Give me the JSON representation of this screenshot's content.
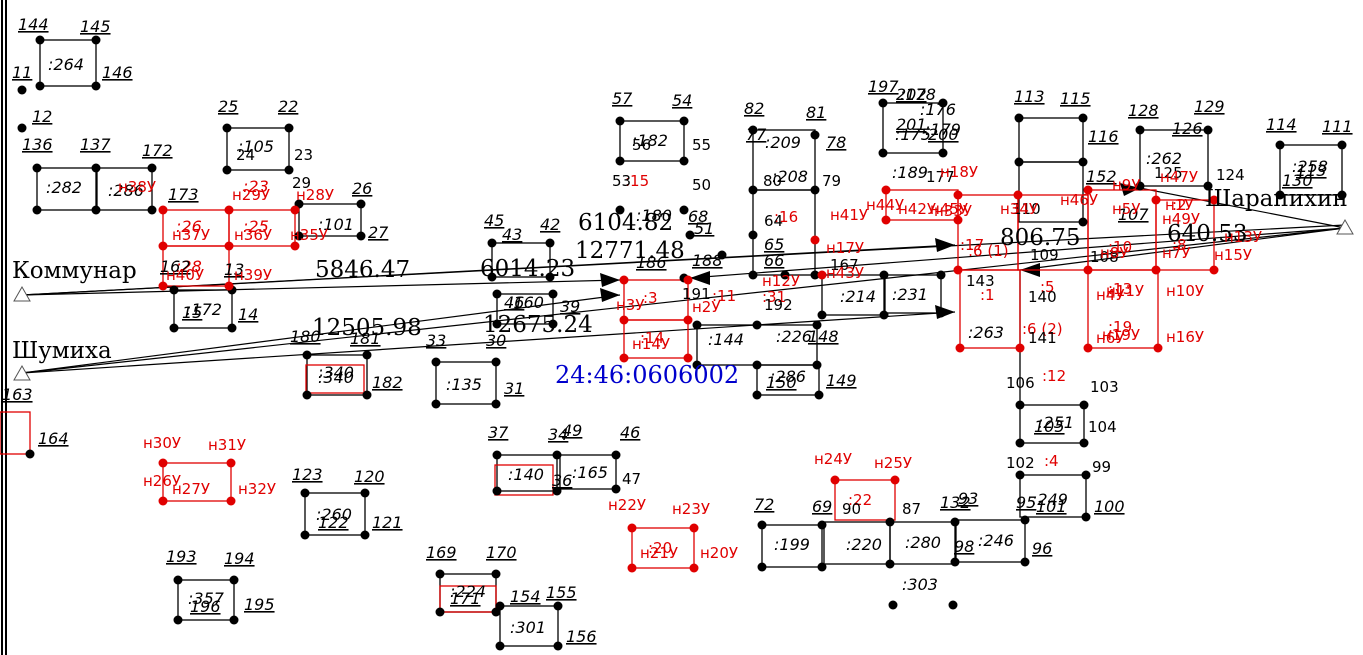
{
  "map": {
    "title": "",
    "cadastral_block": "24:46:0606002",
    "stations": [
      {
        "name": "Коммунар"
      },
      {
        "name": "Шумиха"
      },
      {
        "name": "Шарапихин"
      }
    ],
    "distances": [
      "5846.47",
      "12505.98",
      "6104.82",
      "6014.23",
      "12771.48",
      "12675.24",
      "806.75",
      "640.53"
    ],
    "parcel_labels": [
      ":264",
      ":282",
      ":286",
      ":23",
      ":25",
      ":26",
      ":28",
      ":101",
      ":105",
      ":172",
      ":15",
      ":182",
      ":180",
      ":209",
      ":208",
      ":16",
      ":189",
      ":175",
      ":176",
      ":178",
      ":179",
      ":17",
      ":1",
      ":5",
      ":6 (1)",
      ":6 (2)",
      ":263",
      ":10",
      ":13",
      ":19",
      ":12",
      ":251",
      ":4",
      ":249",
      ":262",
      ":258",
      ":340",
      ":135",
      ":160",
      ":144",
      ":286",
      ":226",
      ":231",
      ":214",
      ":340",
      ":165",
      ":140",
      ":260",
      ":357",
      ":224",
      ":301",
      ":199",
      ":220",
      ":280",
      ":303",
      ":246",
      ":20",
      ":22",
      ":3",
      ":11",
      ":31",
      ":14",
      ":2",
      ":8"
    ],
    "point_labels": [
      "144",
      "145",
      "146",
      "11",
      "12",
      "136",
      "137",
      "172",
      "173",
      "25",
      "22",
      "23",
      "24",
      "29",
      "26",
      "27",
      "162",
      "13",
      "15",
      "14",
      "45",
      "42",
      "43",
      "46",
      "39",
      "33",
      "30",
      "31",
      "180",
      "181",
      "182",
      "57",
      "54",
      "55",
      "56",
      "53",
      "50",
      "68",
      "51",
      "186",
      "188",
      "191",
      "82",
      "81",
      "77",
      "78",
      "80",
      "79",
      "64",
      "65",
      "66",
      "192",
      "167",
      "148",
      "149",
      "150",
      "37",
      "34",
      "49",
      "46",
      "47",
      "36",
      "123",
      "120",
      "121",
      "122",
      "193",
      "194",
      "195",
      "196",
      "169",
      "170",
      "171",
      "154",
      "155",
      "156",
      "72",
      "69",
      "90",
      "87",
      "132",
      "93",
      "95",
      "96",
      "98",
      "100",
      "101",
      "102",
      "99",
      "103",
      "104",
      "105",
      "106",
      "140",
      "141",
      "143",
      "109",
      "110",
      "113",
      "115",
      "116",
      "152",
      "107",
      "108",
      "128",
      "129",
      "125",
      "126",
      "114",
      "111",
      "113",
      "130",
      "124",
      "163",
      "164",
      "197",
      "200",
      "201",
      "202",
      "177"
    ],
    "red_labels": [
      "н38У",
      "н29У",
      "н28У",
      "н37У",
      "н36У",
      "н35У",
      "н40У",
      "н39У",
      "н17У",
      "н18У",
      "н12У",
      "н43У",
      "н44У",
      "н45У",
      "н46У",
      "н47У",
      "н49У",
      "н1У",
      "н2У",
      "н3У",
      "н4У",
      "н5У",
      "н6У",
      "н7У",
      "н8У",
      "н9У",
      "н10У",
      "н11У",
      "н13У",
      "н14У",
      "н15У",
      "н16У",
      "н19У",
      "н20У",
      "н21У",
      "н22У",
      "н23У",
      "н24У",
      "н25У",
      "н26У",
      "н27У",
      "н30У",
      "н31У",
      "н32У",
      "н33У",
      "н34У",
      "н41У",
      "н42У"
    ]
  }
}
